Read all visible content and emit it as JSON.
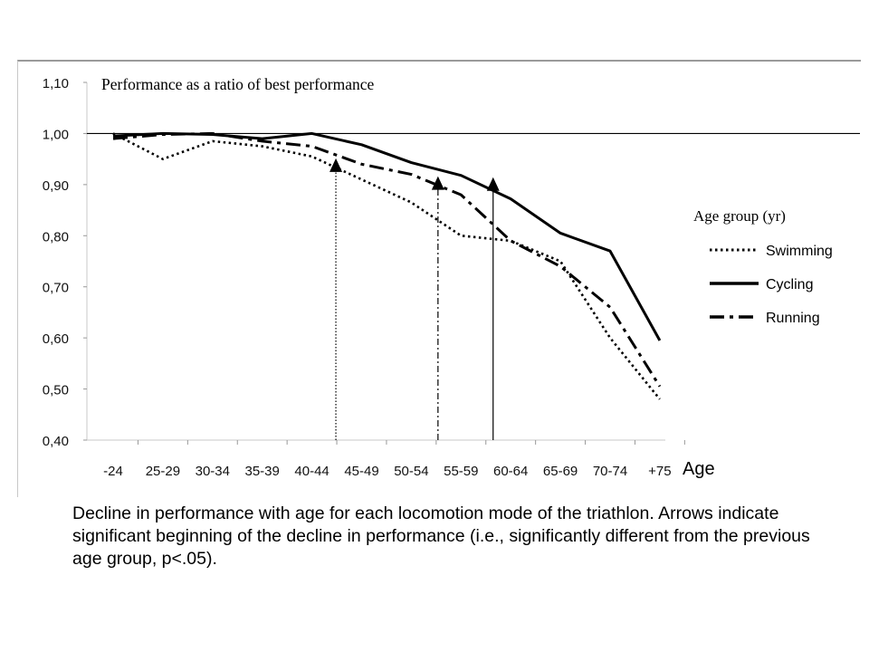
{
  "chart_data": {
    "type": "line",
    "title": "Performance as a ratio of best performance",
    "xlabel": "Age",
    "ylabel": "",
    "categories": [
      "-24",
      "25-29",
      "30-34",
      "35-39",
      "40-44",
      "45-49",
      "50-54",
      "55-59",
      "60-64",
      "65-69",
      "70-74",
      "+75"
    ],
    "ylim": [
      0.4,
      1.1
    ],
    "y_ticks": [
      "0,40",
      "0,50",
      "0,60",
      "0,70",
      "0,80",
      "0,90",
      "1,00",
      "1,10"
    ],
    "reference_line": 1.0,
    "legend_title": "Age group (yr)",
    "legend_position": "right",
    "grid": false,
    "series": [
      {
        "name": "Swimming",
        "style": "dotted",
        "values": [
          1.0,
          0.95,
          0.985,
          0.975,
          0.955,
          0.91,
          0.865,
          0.8,
          0.79,
          0.75,
          0.6,
          0.48
        ]
      },
      {
        "name": "Cycling",
        "style": "solid",
        "values": [
          0.995,
          1.0,
          0.998,
          0.99,
          1.0,
          0.978,
          0.943,
          0.918,
          0.872,
          0.805,
          0.77,
          0.595
        ]
      },
      {
        "name": "Running",
        "style": "dash-dot",
        "values": [
          0.99,
          0.998,
          1.0,
          0.985,
          0.975,
          0.94,
          0.92,
          0.88,
          0.79,
          0.74,
          0.66,
          0.505
        ]
      }
    ],
    "arrows": [
      {
        "series": "Swimming",
        "at": "40-44",
        "value": 0.955
      },
      {
        "series": "Running",
        "at": "50-54",
        "value": 0.92
      },
      {
        "series": "Cycling",
        "at": "55-59",
        "value": 0.918
      }
    ]
  },
  "caption": "Decline in performance with age for each locomotion mode of the triathlon. Arrows indicate significant beginning of the decline in performance (i.e., significantly different from the previous age group, p<.05)."
}
